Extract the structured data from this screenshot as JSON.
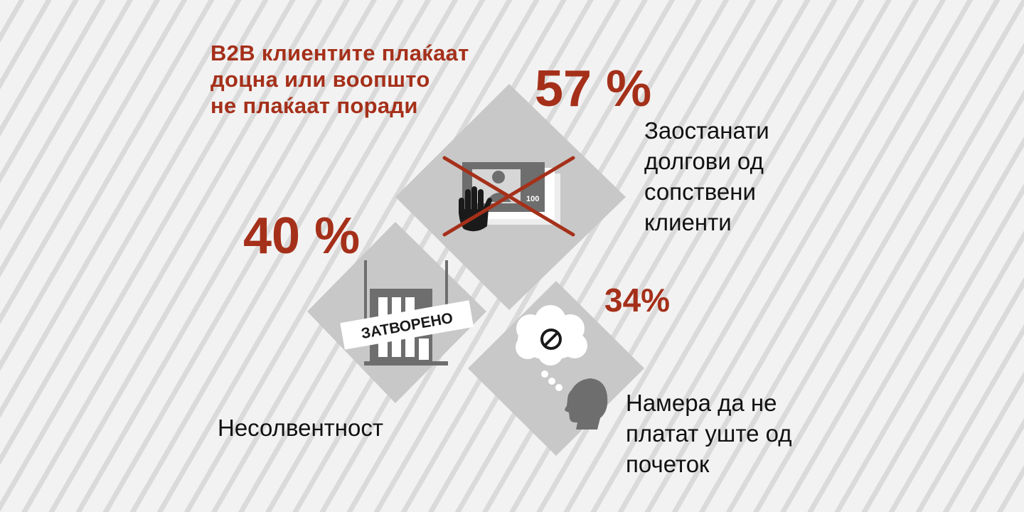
{
  "headline": {
    "lines": [
      "B2B клиентите плаќаат",
      "доцна или воопшто",
      "не плаќаат поради"
    ]
  },
  "reasons": [
    {
      "percent": "57 %",
      "description_lines": [
        "Заостанати",
        "долгови од",
        "сопствени",
        "клиенти"
      ],
      "icon": "cash-stop-icon",
      "banknote_value": "100"
    },
    {
      "percent": "40 %",
      "description_lines": [
        "Несолвентност"
      ],
      "icon": "closed-shop-icon",
      "sign_text": "ЗАТВОРЕНО"
    },
    {
      "percent": "34%",
      "description_lines": [
        "Намера да не",
        "платат уште од",
        "почеток"
      ],
      "icon": "thinking-head-icon"
    }
  ],
  "colors": {
    "accent": "#a5301a",
    "diamond": "#c8c8c8",
    "icon_dark": "#6e6e6e",
    "text": "#111111"
  }
}
